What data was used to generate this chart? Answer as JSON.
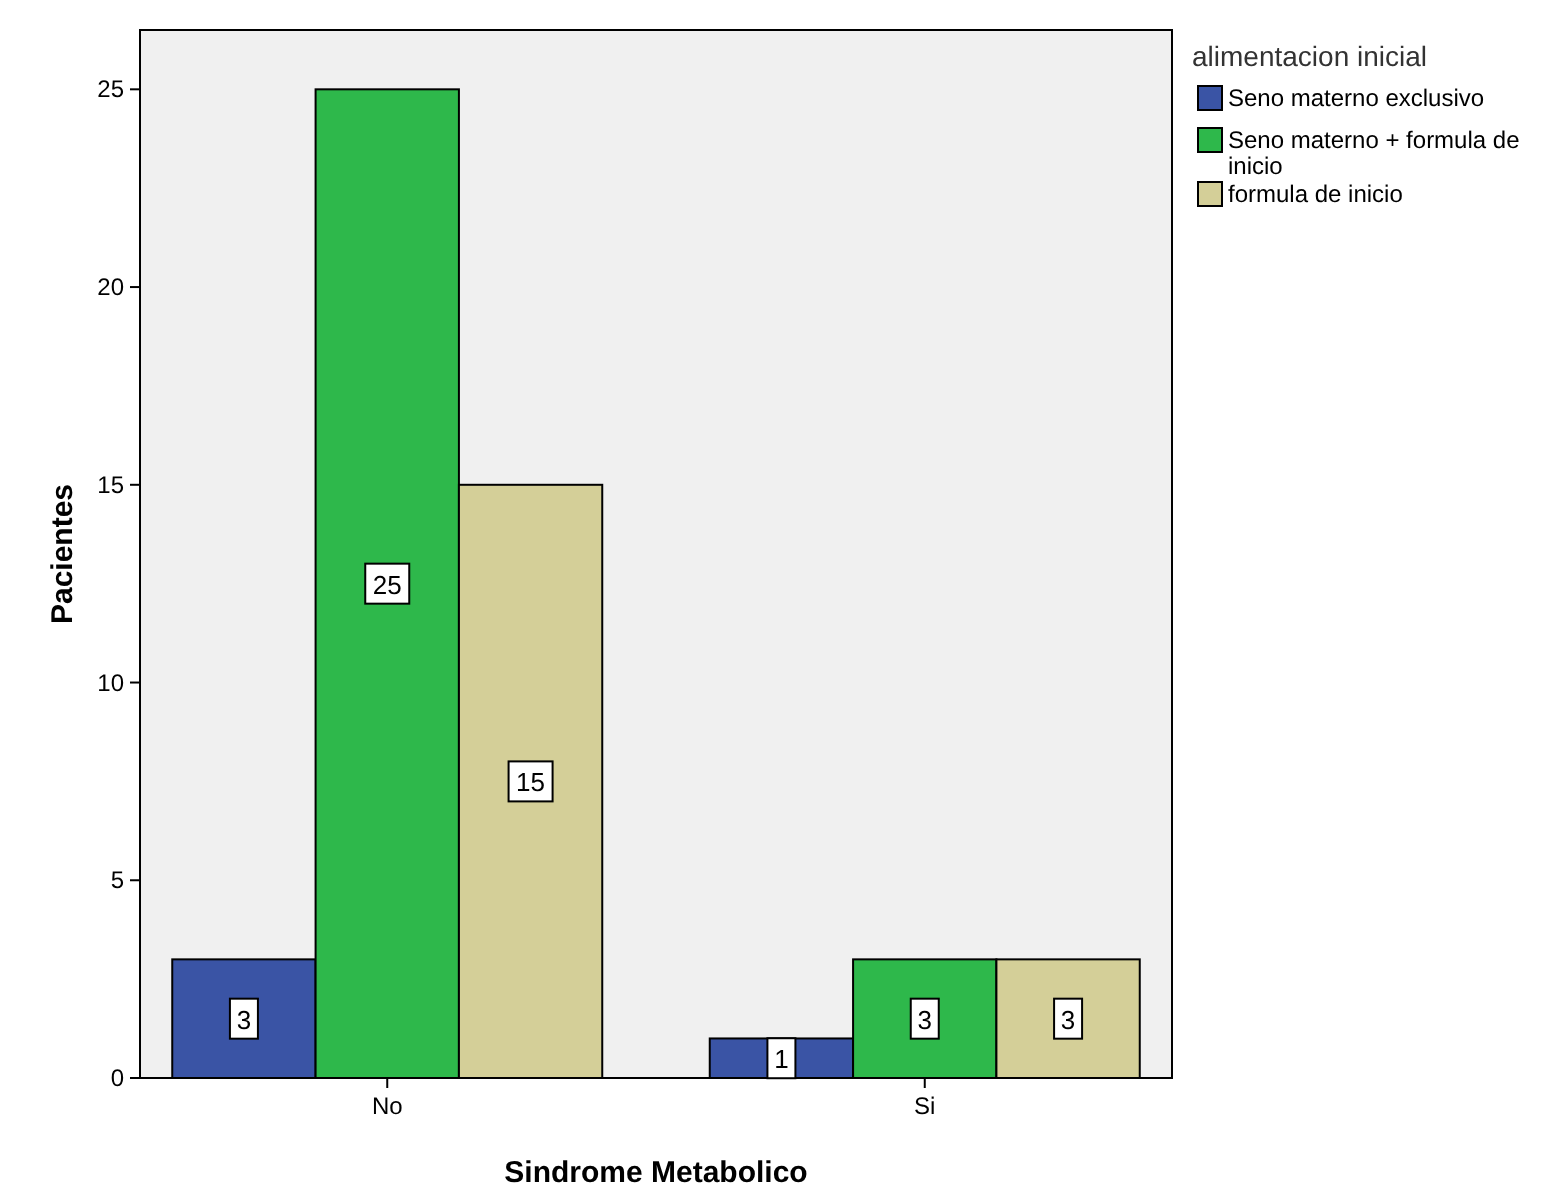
{
  "chart_data": {
    "type": "bar",
    "xlabel": "Sindrome Metabolico",
    "ylabel": "Pacientes",
    "legend_title": "alimentacion inicial",
    "categories": [
      "No",
      "Si"
    ],
    "series": [
      {
        "name": "Seno materno exclusivo",
        "color": "#3a54a5",
        "values": [
          3,
          1
        ]
      },
      {
        "name": "Seno materno + formula de inicio",
        "color": "#2eb84b",
        "values": [
          25,
          3
        ]
      },
      {
        "name": "formula de inicio",
        "color": "#d4cf98",
        "values": [
          15,
          3
        ]
      }
    ],
    "ylim": [
      0,
      26.5
    ],
    "yticks": [
      0,
      5,
      10,
      15,
      20,
      25
    ],
    "data_labels": true,
    "legend": "top right",
    "grid": false
  }
}
